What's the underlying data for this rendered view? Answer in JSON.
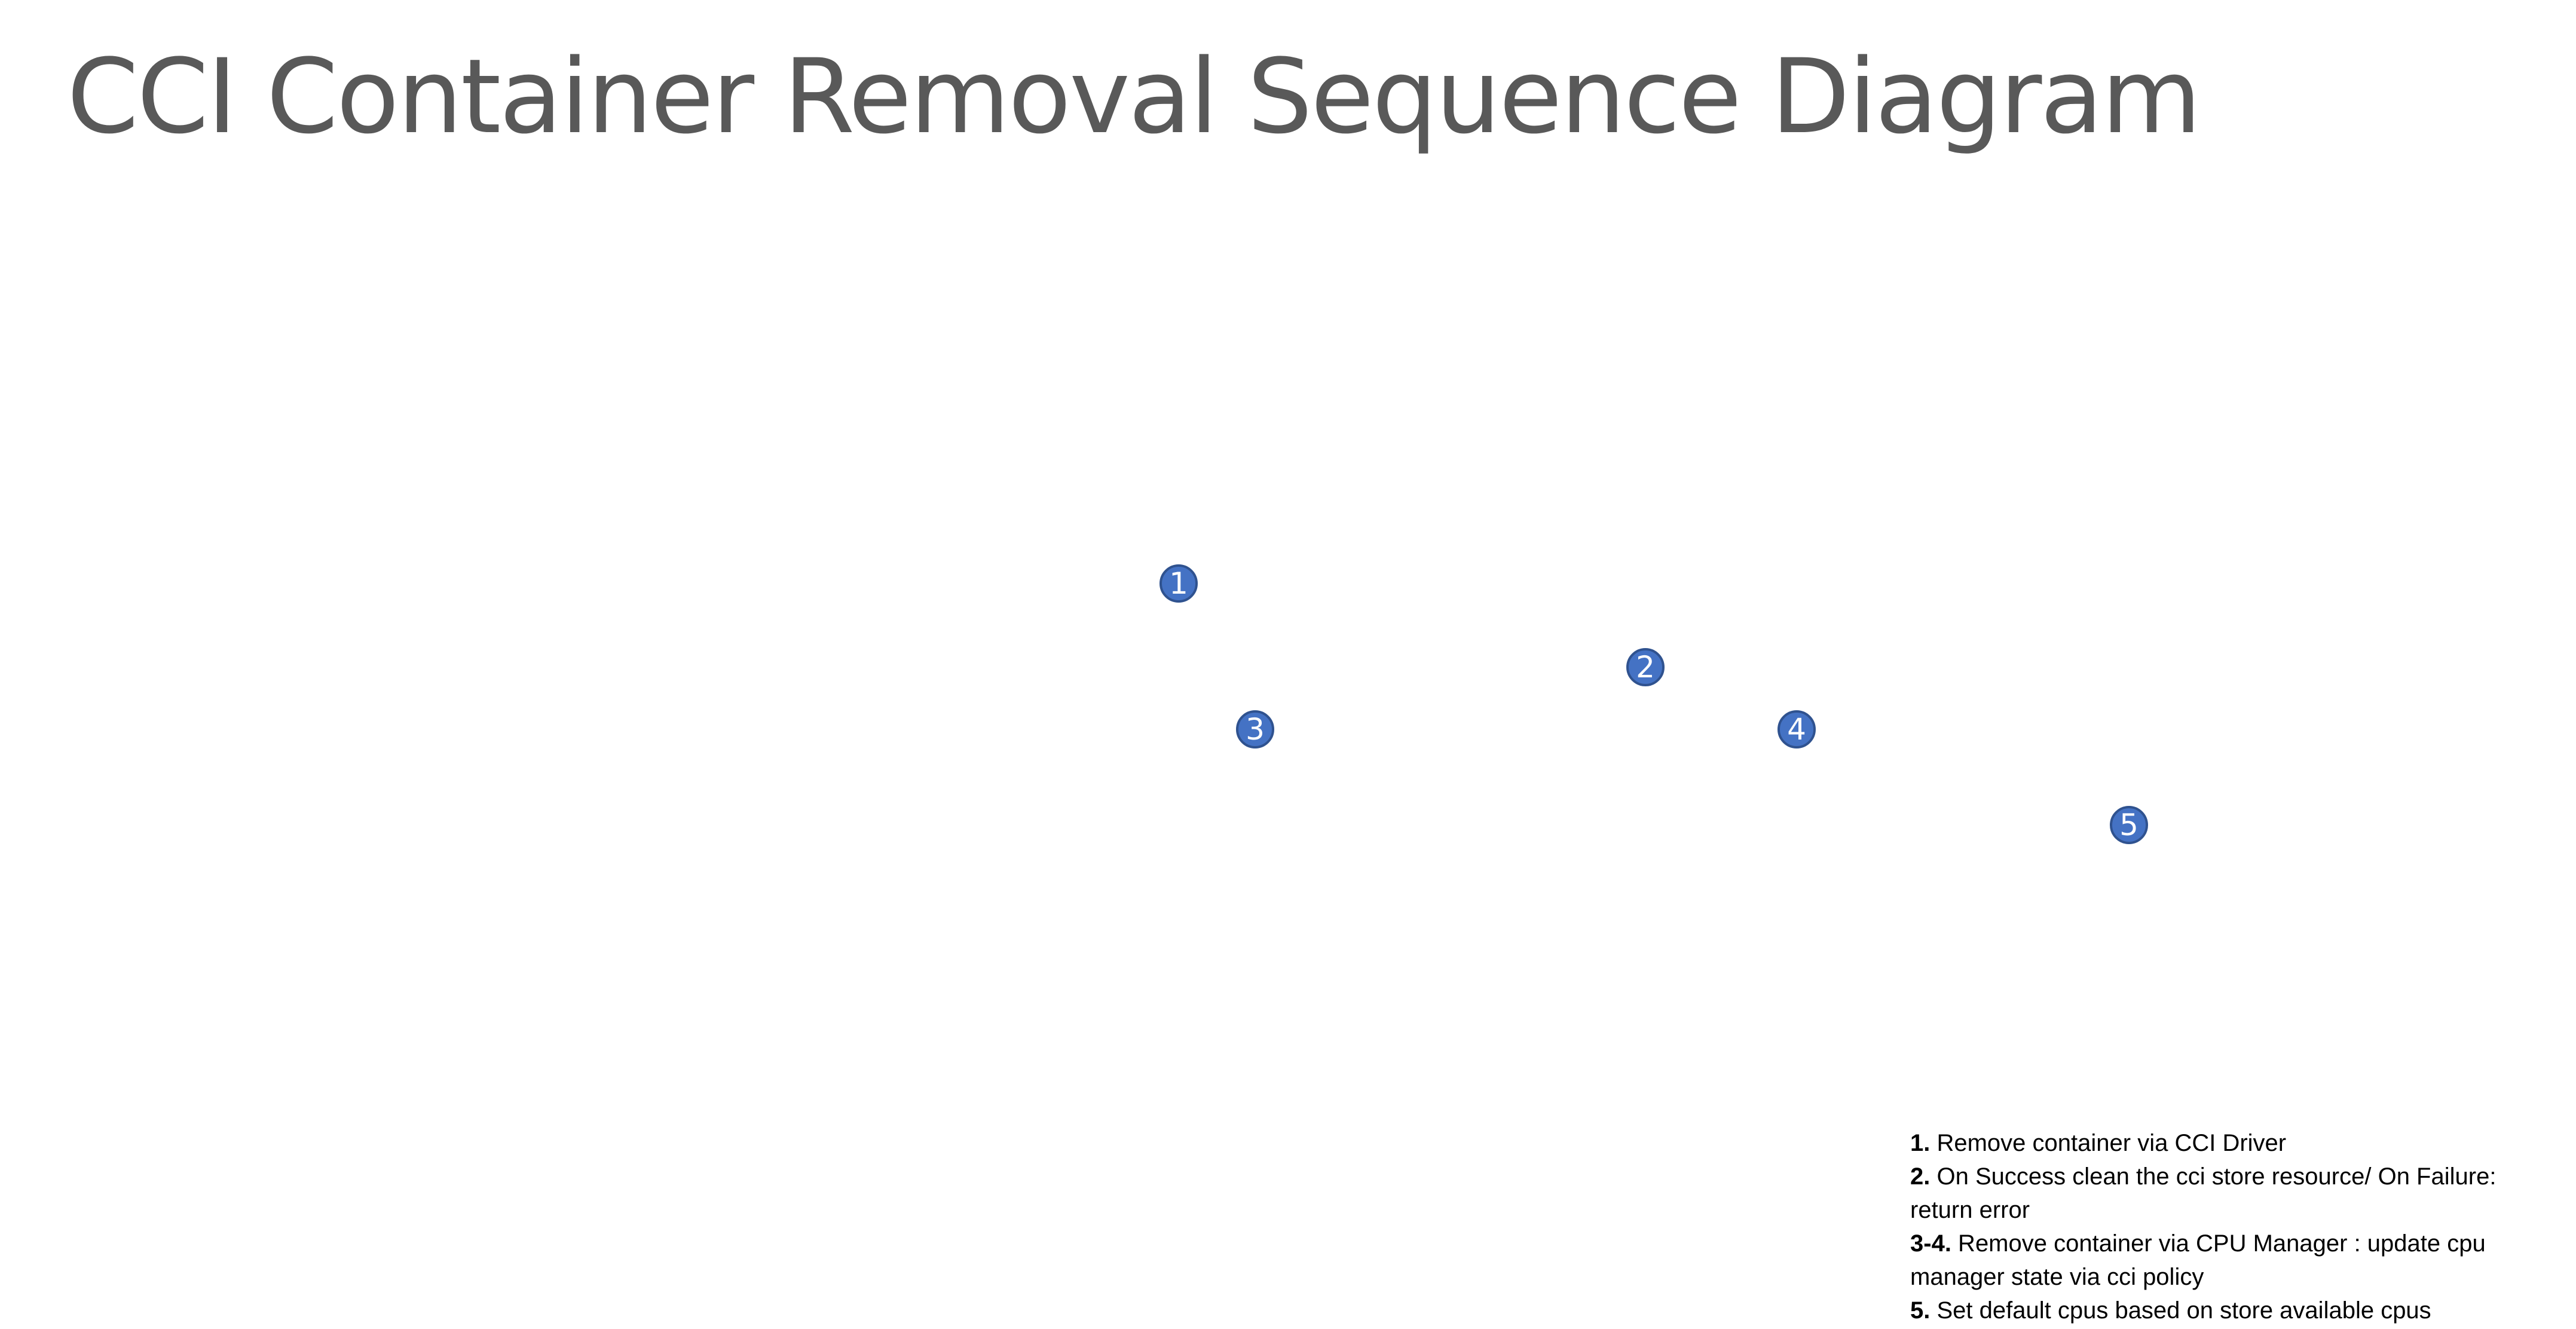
{
  "title": "CCI Container Removal Sequence Diagram",
  "colors": {
    "title": "#595959",
    "marker_fill": "#4472c4",
    "marker_border": "#2f528f",
    "marker_text": "#ffffff",
    "legend_text": "#000000"
  },
  "markers": [
    {
      "label": "1"
    },
    {
      "label": "2"
    },
    {
      "label": "3"
    },
    {
      "label": "4"
    },
    {
      "label": "5"
    }
  ],
  "legend": [
    {
      "num": "1.",
      "text": " Remove container via CCI Driver"
    },
    {
      "num": "2.",
      "text": " On Success  clean the cci store resource/ On Failure: return error"
    },
    {
      "num": "3-4.",
      "text": " Remove container via CPU Manager : update cpu manager state via cci policy"
    },
    {
      "num": "5.",
      "text": " Set default cpus based on store available cpus"
    }
  ]
}
